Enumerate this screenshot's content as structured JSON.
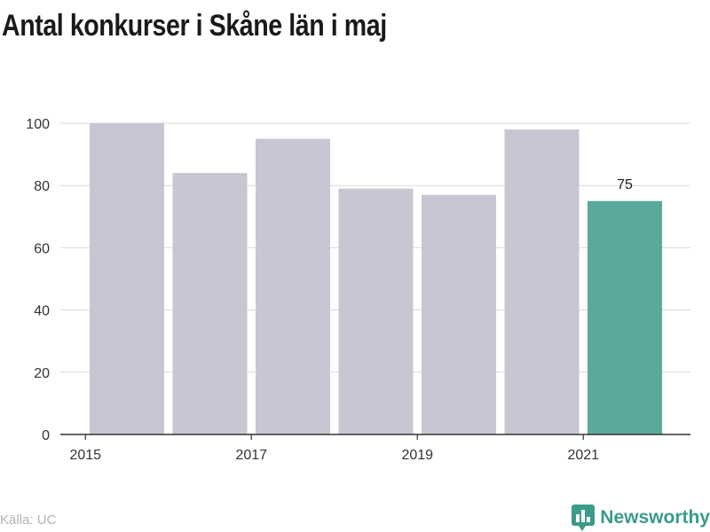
{
  "title": "Antal konkurser i Skåne län i maj",
  "source": "Källa: UC",
  "brand": {
    "name": "Newsworthy",
    "icon": "bar-chart-icon"
  },
  "colors": {
    "bar": "#c8c6d2",
    "highlight": "#5aa99c",
    "grid": "#d9d9d9",
    "axis": "#333333"
  },
  "chart_data": {
    "type": "bar",
    "title": "Antal konkurser i Skåne län i maj",
    "xlabel": "",
    "ylabel": "",
    "categories": [
      "2015",
      "2016",
      "2017",
      "2018",
      "2019",
      "2020",
      "2021"
    ],
    "values": [
      100,
      84,
      95,
      79,
      77,
      98,
      75
    ],
    "highlight_index": 6,
    "data_labels": [
      {
        "index": 6,
        "text": "75"
      }
    ],
    "x_tick_labels": [
      "2015",
      "2017",
      "2019",
      "2021"
    ],
    "y_ticks": [
      0,
      20,
      40,
      60,
      80,
      100
    ],
    "ylim": [
      0,
      100
    ],
    "grid": true,
    "legend": "none"
  }
}
